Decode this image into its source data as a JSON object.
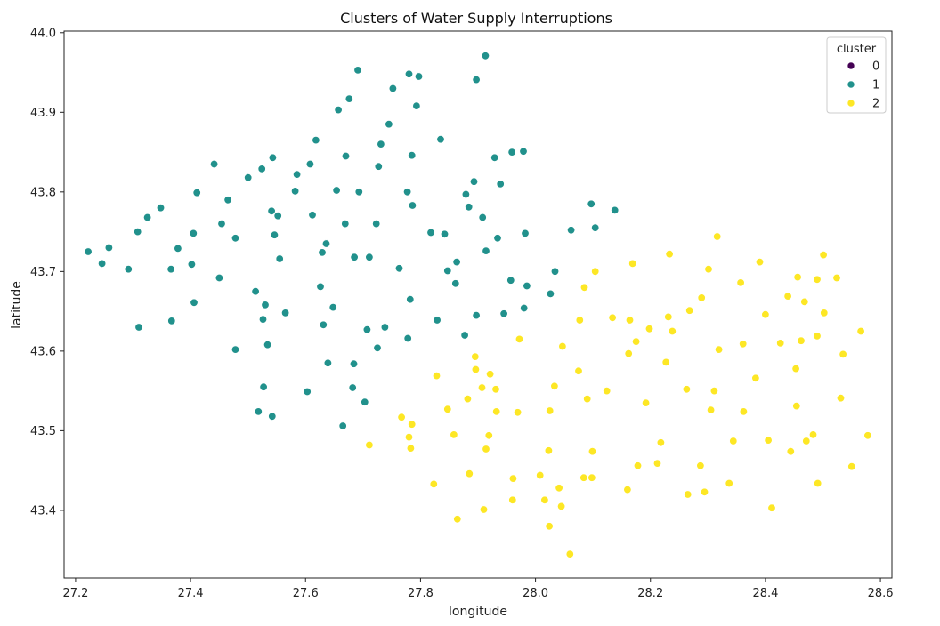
{
  "chart_data": {
    "type": "scatter",
    "title": "Clusters of Water Supply Interruptions",
    "xlabel": "longitude",
    "ylabel": "latitude",
    "xlim": [
      27.18,
      28.62
    ],
    "ylim": [
      43.315,
      44.002
    ],
    "xticks": [
      27.2,
      27.4,
      27.6,
      27.8,
      28.0,
      28.2,
      28.4,
      28.6
    ],
    "xtick_labels": [
      "27.2",
      "27.4",
      "27.6",
      "27.8",
      "28.0",
      "28.2",
      "28.4",
      "28.6"
    ],
    "yticks": [
      43.4,
      43.5,
      43.6,
      43.7,
      43.8,
      43.9,
      44.0
    ],
    "ytick_labels": [
      "43.4",
      "43.5",
      "43.6",
      "43.7",
      "43.8",
      "43.9",
      "44.0"
    ],
    "grid": false,
    "legend": {
      "title": "cluster",
      "placement": "top-right"
    },
    "series": [
      {
        "name": "0",
        "color": "#440154",
        "points": []
      },
      {
        "name": "1",
        "color": "#21918c",
        "points": [
          [
            27.222,
            43.725
          ],
          [
            27.246,
            43.71
          ],
          [
            27.258,
            43.73
          ],
          [
            27.292,
            43.703
          ],
          [
            27.308,
            43.75
          ],
          [
            27.31,
            43.63
          ],
          [
            27.325,
            43.768
          ],
          [
            27.348,
            43.78
          ],
          [
            27.366,
            43.703
          ],
          [
            27.367,
            43.638
          ],
          [
            27.378,
            43.729
          ],
          [
            27.402,
            43.709
          ],
          [
            27.405,
            43.748
          ],
          [
            27.406,
            43.661
          ],
          [
            27.411,
            43.799
          ],
          [
            27.45,
            43.692
          ],
          [
            27.441,
            43.835
          ],
          [
            27.454,
            43.76
          ],
          [
            27.465,
            43.79
          ],
          [
            27.478,
            43.742
          ],
          [
            27.478,
            43.602
          ],
          [
            27.5,
            43.818
          ],
          [
            27.513,
            43.675
          ],
          [
            27.518,
            43.524
          ],
          [
            27.524,
            43.829
          ],
          [
            27.526,
            43.64
          ],
          [
            27.527,
            43.555
          ],
          [
            27.53,
            43.658
          ],
          [
            27.534,
            43.608
          ],
          [
            27.541,
            43.776
          ],
          [
            27.542,
            43.518
          ],
          [
            27.543,
            43.843
          ],
          [
            27.546,
            43.746
          ],
          [
            27.552,
            43.77
          ],
          [
            27.555,
            43.716
          ],
          [
            27.565,
            43.648
          ],
          [
            27.582,
            43.801
          ],
          [
            27.585,
            43.822
          ],
          [
            27.603,
            43.549
          ],
          [
            27.608,
            43.835
          ],
          [
            27.612,
            43.771
          ],
          [
            27.618,
            43.865
          ],
          [
            27.626,
            43.681
          ],
          [
            27.629,
            43.724
          ],
          [
            27.631,
            43.633
          ],
          [
            27.636,
            43.735
          ],
          [
            27.639,
            43.585
          ],
          [
            27.648,
            43.655
          ],
          [
            27.654,
            43.802
          ],
          [
            27.657,
            43.903
          ],
          [
            27.665,
            43.506
          ],
          [
            27.669,
            43.76
          ],
          [
            27.67,
            43.845
          ],
          [
            27.676,
            43.917
          ],
          [
            27.682,
            43.554
          ],
          [
            27.684,
            43.584
          ],
          [
            27.685,
            43.718
          ],
          [
            27.691,
            43.953
          ],
          [
            27.693,
            43.8
          ],
          [
            27.703,
            43.536
          ],
          [
            27.707,
            43.627
          ],
          [
            27.711,
            43.718
          ],
          [
            27.723,
            43.76
          ],
          [
            27.725,
            43.604
          ],
          [
            27.727,
            43.832
          ],
          [
            27.731,
            43.86
          ],
          [
            27.738,
            43.63
          ],
          [
            27.745,
            43.885
          ],
          [
            27.752,
            43.93
          ],
          [
            27.763,
            43.704
          ],
          [
            27.777,
            43.8
          ],
          [
            27.778,
            43.616
          ],
          [
            27.78,
            43.948
          ],
          [
            27.782,
            43.665
          ],
          [
            27.785,
            43.846
          ],
          [
            27.786,
            43.783
          ],
          [
            27.793,
            43.908
          ],
          [
            27.797,
            43.945
          ],
          [
            27.818,
            43.749
          ],
          [
            27.829,
            43.639
          ],
          [
            27.835,
            43.866
          ],
          [
            27.842,
            43.747
          ],
          [
            27.847,
            43.701
          ],
          [
            27.861,
            43.685
          ],
          [
            27.863,
            43.712
          ],
          [
            27.877,
            43.62
          ],
          [
            27.879,
            43.797
          ],
          [
            27.884,
            43.781
          ],
          [
            27.893,
            43.813
          ],
          [
            27.897,
            43.645
          ],
          [
            27.897,
            43.941
          ],
          [
            27.908,
            43.768
          ],
          [
            27.913,
            43.971
          ],
          [
            27.914,
            43.726
          ],
          [
            27.929,
            43.843
          ],
          [
            27.934,
            43.742
          ],
          [
            27.939,
            43.81
          ],
          [
            27.945,
            43.647
          ],
          [
            27.957,
            43.689
          ],
          [
            27.959,
            43.85
          ],
          [
            27.979,
            43.851
          ],
          [
            27.98,
            43.654
          ],
          [
            27.982,
            43.748
          ],
          [
            27.985,
            43.682
          ],
          [
            28.026,
            43.672
          ],
          [
            28.034,
            43.7
          ],
          [
            28.062,
            43.752
          ],
          [
            28.097,
            43.785
          ],
          [
            28.104,
            43.755
          ],
          [
            28.138,
            43.777
          ]
        ]
      },
      {
        "name": "2",
        "color": "#fde725",
        "points": [
          [
            27.711,
            43.482
          ],
          [
            27.767,
            43.517
          ],
          [
            27.78,
            43.492
          ],
          [
            27.783,
            43.478
          ],
          [
            27.785,
            43.508
          ],
          [
            27.823,
            43.433
          ],
          [
            27.828,
            43.569
          ],
          [
            27.847,
            43.527
          ],
          [
            27.858,
            43.495
          ],
          [
            27.864,
            43.389
          ],
          [
            27.882,
            43.54
          ],
          [
            27.885,
            43.446
          ],
          [
            27.895,
            43.593
          ],
          [
            27.896,
            43.577
          ],
          [
            27.907,
            43.554
          ],
          [
            27.91,
            43.401
          ],
          [
            27.914,
            43.477
          ],
          [
            27.919,
            43.494
          ],
          [
            27.921,
            43.571
          ],
          [
            27.931,
            43.552
          ],
          [
            27.932,
            43.524
          ],
          [
            27.961,
            43.44
          ],
          [
            27.96,
            43.413
          ],
          [
            27.969,
            43.523
          ],
          [
            27.972,
            43.615
          ],
          [
            28.008,
            43.444
          ],
          [
            28.016,
            43.413
          ],
          [
            28.023,
            43.475
          ],
          [
            28.024,
            43.38
          ],
          [
            28.025,
            43.525
          ],
          [
            28.033,
            43.556
          ],
          [
            28.041,
            43.428
          ],
          [
            28.045,
            43.405
          ],
          [
            28.047,
            43.606
          ],
          [
            28.06,
            43.345
          ],
          [
            28.075,
            43.575
          ],
          [
            28.077,
            43.639
          ],
          [
            28.084,
            43.441
          ],
          [
            28.085,
            43.68
          ],
          [
            28.09,
            43.54
          ],
          [
            28.098,
            43.441
          ],
          [
            28.099,
            43.474
          ],
          [
            28.104,
            43.7
          ],
          [
            28.124,
            43.55
          ],
          [
            28.134,
            43.642
          ],
          [
            28.16,
            43.426
          ],
          [
            28.162,
            43.597
          ],
          [
            28.164,
            43.639
          ],
          [
            28.169,
            43.71
          ],
          [
            28.175,
            43.612
          ],
          [
            28.178,
            43.456
          ],
          [
            28.192,
            43.535
          ],
          [
            28.198,
            43.628
          ],
          [
            28.212,
            43.459
          ],
          [
            28.218,
            43.485
          ],
          [
            28.227,
            43.586
          ],
          [
            28.231,
            43.643
          ],
          [
            28.233,
            43.722
          ],
          [
            28.238,
            43.625
          ],
          [
            28.263,
            43.552
          ],
          [
            28.265,
            43.42
          ],
          [
            28.268,
            43.651
          ],
          [
            28.287,
            43.456
          ],
          [
            28.289,
            43.667
          ],
          [
            28.294,
            43.423
          ],
          [
            28.301,
            43.703
          ],
          [
            28.305,
            43.526
          ],
          [
            28.311,
            43.55
          ],
          [
            28.316,
            43.744
          ],
          [
            28.319,
            43.602
          ],
          [
            28.337,
            43.434
          ],
          [
            28.344,
            43.487
          ],
          [
            28.357,
            43.686
          ],
          [
            28.361,
            43.609
          ],
          [
            28.362,
            43.524
          ],
          [
            28.383,
            43.566
          ],
          [
            28.39,
            43.712
          ],
          [
            28.4,
            43.646
          ],
          [
            28.405,
            43.488
          ],
          [
            28.411,
            43.403
          ],
          [
            28.426,
            43.61
          ],
          [
            28.439,
            43.669
          ],
          [
            28.444,
            43.474
          ],
          [
            28.453,
            43.578
          ],
          [
            28.454,
            43.531
          ],
          [
            28.456,
            43.693
          ],
          [
            28.462,
            43.613
          ],
          [
            28.468,
            43.662
          ],
          [
            28.471,
            43.487
          ],
          [
            28.483,
            43.495
          ],
          [
            28.49,
            43.619
          ],
          [
            28.49,
            43.69
          ],
          [
            28.491,
            43.434
          ],
          [
            28.501,
            43.721
          ],
          [
            28.502,
            43.648
          ],
          [
            28.524,
            43.692
          ],
          [
            28.531,
            43.541
          ],
          [
            28.535,
            43.596
          ],
          [
            28.55,
            43.455
          ],
          [
            28.566,
            43.625
          ],
          [
            28.578,
            43.494
          ]
        ]
      }
    ]
  }
}
